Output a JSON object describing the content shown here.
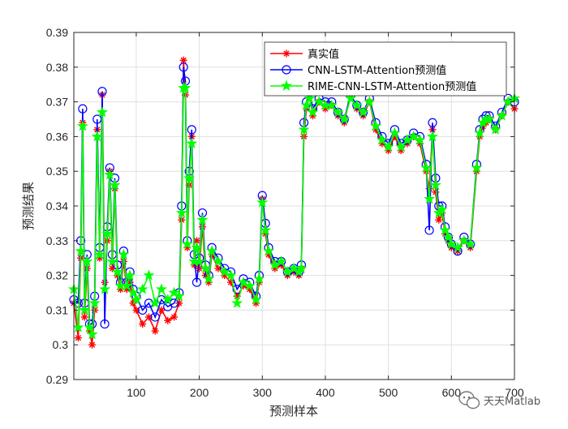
{
  "chart_data": {
    "type": "line",
    "title": "",
    "xlabel": "预测样本",
    "ylabel": "预测结果",
    "xlim": [
      1,
      700
    ],
    "ylim": [
      0.29,
      0.39
    ],
    "xticks": [
      100,
      200,
      300,
      400,
      500,
      600,
      700
    ],
    "xtick_labels": [
      "100",
      "200",
      "300",
      "400",
      "500",
      "600",
      "700"
    ],
    "yticks": [
      0.29,
      0.3,
      0.31,
      0.32,
      0.33,
      0.34,
      0.35,
      0.36,
      0.37,
      0.38,
      0.39
    ],
    "ytick_labels": [
      "0.29",
      "0.3",
      "0.31",
      "0.32",
      "0.33",
      "0.34",
      "0.35",
      "0.36",
      "0.37",
      "0.38",
      "0.39"
    ],
    "grid": true,
    "legend_position": "top-right",
    "x": [
      1,
      8,
      12,
      15,
      18,
      22,
      26,
      30,
      34,
      38,
      42,
      46,
      50,
      54,
      58,
      62,
      66,
      70,
      75,
      80,
      85,
      90,
      95,
      100,
      110,
      120,
      130,
      140,
      150,
      160,
      168,
      172,
      175,
      178,
      181,
      184,
      188,
      192,
      196,
      200,
      205,
      210,
      215,
      220,
      230,
      240,
      250,
      260,
      270,
      280,
      290,
      295,
      300,
      305,
      310,
      320,
      330,
      340,
      350,
      358,
      362,
      366,
      370,
      375,
      380,
      390,
      400,
      410,
      420,
      430,
      440,
      450,
      460,
      470,
      480,
      490,
      500,
      510,
      520,
      530,
      540,
      550,
      560,
      565,
      570,
      575,
      580,
      585,
      590,
      595,
      600,
      610,
      620,
      630,
      640,
      645,
      650,
      655,
      660,
      670,
      680,
      690,
      700
    ],
    "series": [
      {
        "name": "真实值",
        "color": "#ff0000",
        "marker": "asterisk",
        "values": [
          0.312,
          0.302,
          0.325,
          0.364,
          0.308,
          0.322,
          0.304,
          0.3,
          0.31,
          0.362,
          0.325,
          0.372,
          0.318,
          0.33,
          0.35,
          0.322,
          0.345,
          0.32,
          0.316,
          0.324,
          0.316,
          0.318,
          0.312,
          0.31,
          0.306,
          0.308,
          0.304,
          0.31,
          0.307,
          0.308,
          0.312,
          0.336,
          0.382,
          0.372,
          0.328,
          0.346,
          0.36,
          0.323,
          0.33,
          0.322,
          0.334,
          0.32,
          0.318,
          0.326,
          0.322,
          0.32,
          0.318,
          0.314,
          0.317,
          0.316,
          0.312,
          0.318,
          0.342,
          0.332,
          0.326,
          0.322,
          0.323,
          0.32,
          0.321,
          0.32,
          0.322,
          0.36,
          0.368,
          0.372,
          0.366,
          0.37,
          0.368,
          0.369,
          0.366,
          0.364,
          0.372,
          0.368,
          0.366,
          0.37,
          0.362,
          0.358,
          0.356,
          0.36,
          0.356,
          0.358,
          0.36,
          0.358,
          0.35,
          0.345,
          0.362,
          0.344,
          0.336,
          0.338,
          0.332,
          0.33,
          0.328,
          0.327,
          0.33,
          0.328,
          0.35,
          0.36,
          0.363,
          0.364,
          0.365,
          0.362,
          0.366,
          0.37,
          0.368
        ]
      },
      {
        "name": "CNN-LSTM-Attention预测值",
        "color": "#0000ff",
        "marker": "circle",
        "values": [
          0.313,
          0.312,
          0.33,
          0.368,
          0.312,
          0.326,
          0.306,
          0.306,
          0.314,
          0.365,
          0.328,
          0.373,
          0.306,
          0.334,
          0.351,
          0.326,
          0.348,
          0.323,
          0.318,
          0.327,
          0.318,
          0.321,
          0.316,
          0.314,
          0.31,
          0.312,
          0.308,
          0.313,
          0.311,
          0.312,
          0.315,
          0.34,
          0.38,
          0.376,
          0.33,
          0.35,
          0.362,
          0.326,
          0.318,
          0.325,
          0.338,
          0.323,
          0.32,
          0.328,
          0.325,
          0.322,
          0.321,
          0.316,
          0.319,
          0.318,
          0.314,
          0.32,
          0.343,
          0.335,
          0.328,
          0.324,
          0.324,
          0.321,
          0.322,
          0.321,
          0.323,
          0.364,
          0.37,
          0.373,
          0.368,
          0.371,
          0.37,
          0.37,
          0.367,
          0.365,
          0.372,
          0.369,
          0.367,
          0.371,
          0.364,
          0.36,
          0.358,
          0.362,
          0.358,
          0.359,
          0.361,
          0.36,
          0.352,
          0.333,
          0.364,
          0.348,
          0.34,
          0.34,
          0.334,
          0.331,
          0.329,
          0.327,
          0.331,
          0.329,
          0.352,
          0.362,
          0.365,
          0.366,
          0.366,
          0.363,
          0.367,
          0.371,
          0.37
        ]
      },
      {
        "name": "RIME-CNN-LSTM-Attention预测值",
        "color": "#00ff00",
        "marker": "star",
        "values": [
          0.316,
          0.305,
          0.327,
          0.363,
          0.31,
          0.324,
          0.305,
          0.303,
          0.312,
          0.36,
          0.326,
          0.367,
          0.316,
          0.332,
          0.349,
          0.324,
          0.346,
          0.321,
          0.317,
          0.326,
          0.317,
          0.32,
          0.315,
          0.313,
          0.316,
          0.32,
          0.312,
          0.316,
          0.313,
          0.315,
          0.314,
          0.338,
          0.374,
          0.374,
          0.329,
          0.348,
          0.358,
          0.324,
          0.328,
          0.324,
          0.336,
          0.322,
          0.319,
          0.327,
          0.324,
          0.321,
          0.32,
          0.312,
          0.318,
          0.317,
          0.313,
          0.319,
          0.341,
          0.333,
          0.327,
          0.323,
          0.324,
          0.321,
          0.322,
          0.321,
          0.322,
          0.362,
          0.369,
          0.371,
          0.367,
          0.37,
          0.369,
          0.369,
          0.367,
          0.365,
          0.371,
          0.369,
          0.367,
          0.37,
          0.363,
          0.359,
          0.357,
          0.361,
          0.357,
          0.359,
          0.36,
          0.359,
          0.351,
          0.342,
          0.36,
          0.346,
          0.338,
          0.339,
          0.333,
          0.331,
          0.329,
          0.328,
          0.33,
          0.329,
          0.351,
          0.361,
          0.364,
          0.365,
          0.365,
          0.362,
          0.366,
          0.37,
          0.371
        ]
      }
    ]
  },
  "watermark": {
    "text": "天天Matlab",
    "icon": "wechat-icon"
  }
}
